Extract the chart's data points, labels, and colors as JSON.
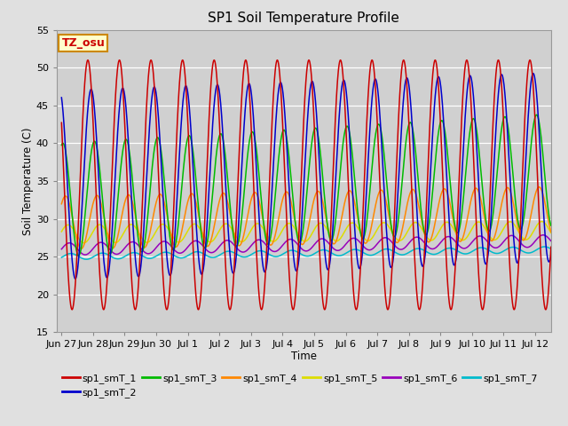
{
  "title": "SP1 Soil Temperature Profile",
  "xlabel": "Time",
  "ylabel": "Soil Temperature (C)",
  "ylim": [
    15,
    55
  ],
  "timezone_label": "TZ_osu",
  "legend_entries": [
    "sp1_smT_1",
    "sp1_smT_2",
    "sp1_smT_3",
    "sp1_smT_4",
    "sp1_smT_5",
    "sp1_smT_6",
    "sp1_smT_7"
  ],
  "colors": [
    "#cc0000",
    "#0000cc",
    "#00bb00",
    "#ff8800",
    "#dddd00",
    "#9900bb",
    "#00bbcc"
  ],
  "bg_color": "#e0e0e0",
  "plot_bg_color": "#d0d0d0",
  "series": {
    "sp1_smT_1": {
      "mean": 34.5,
      "amp": 16.5,
      "phase_hours": 0.0,
      "trend": 0.0,
      "min_damp": 1.0
    },
    "sp1_smT_2": {
      "mean": 34.5,
      "amp": 12.5,
      "phase_hours": 2.5,
      "trend": 0.15,
      "min_damp": 1.0
    },
    "sp1_smT_3": {
      "mean": 32.5,
      "amp": 7.5,
      "phase_hours": 5.0,
      "trend": 0.25,
      "min_damp": 1.0
    },
    "sp1_smT_4": {
      "mean": 29.5,
      "amp": 3.5,
      "phase_hours": 7.0,
      "trend": 0.08,
      "min_damp": 1.0
    },
    "sp1_smT_5": {
      "mean": 28.0,
      "amp": 1.2,
      "phase_hours": 9.0,
      "trend": 0.03,
      "min_damp": 1.0
    },
    "sp1_smT_6": {
      "mean": 26.0,
      "amp": 0.8,
      "phase_hours": 10.0,
      "trend": 0.07,
      "min_damp": 1.0
    },
    "sp1_smT_7": {
      "mean": 25.0,
      "amp": 0.4,
      "phase_hours": 11.0,
      "trend": 0.06,
      "min_damp": 1.0
    }
  },
  "xticks_labels": [
    "Jun 27",
    "Jun 28",
    "Jun 29",
    "Jun 30",
    "Jul 1",
    "Jul 2",
    "Jul 3",
    "Jul 4",
    "Jul 5",
    "Jul 6",
    "Jul 7",
    "Jul 8",
    "Jul 9",
    "Jul 10",
    "Jul 11",
    "Jul 12"
  ],
  "xticks_positions": [
    0,
    1,
    2,
    3,
    4,
    5,
    6,
    7,
    8,
    9,
    10,
    11,
    12,
    13,
    14,
    15
  ],
  "yticks": [
    15,
    20,
    25,
    30,
    35,
    40,
    45,
    50,
    55
  ]
}
